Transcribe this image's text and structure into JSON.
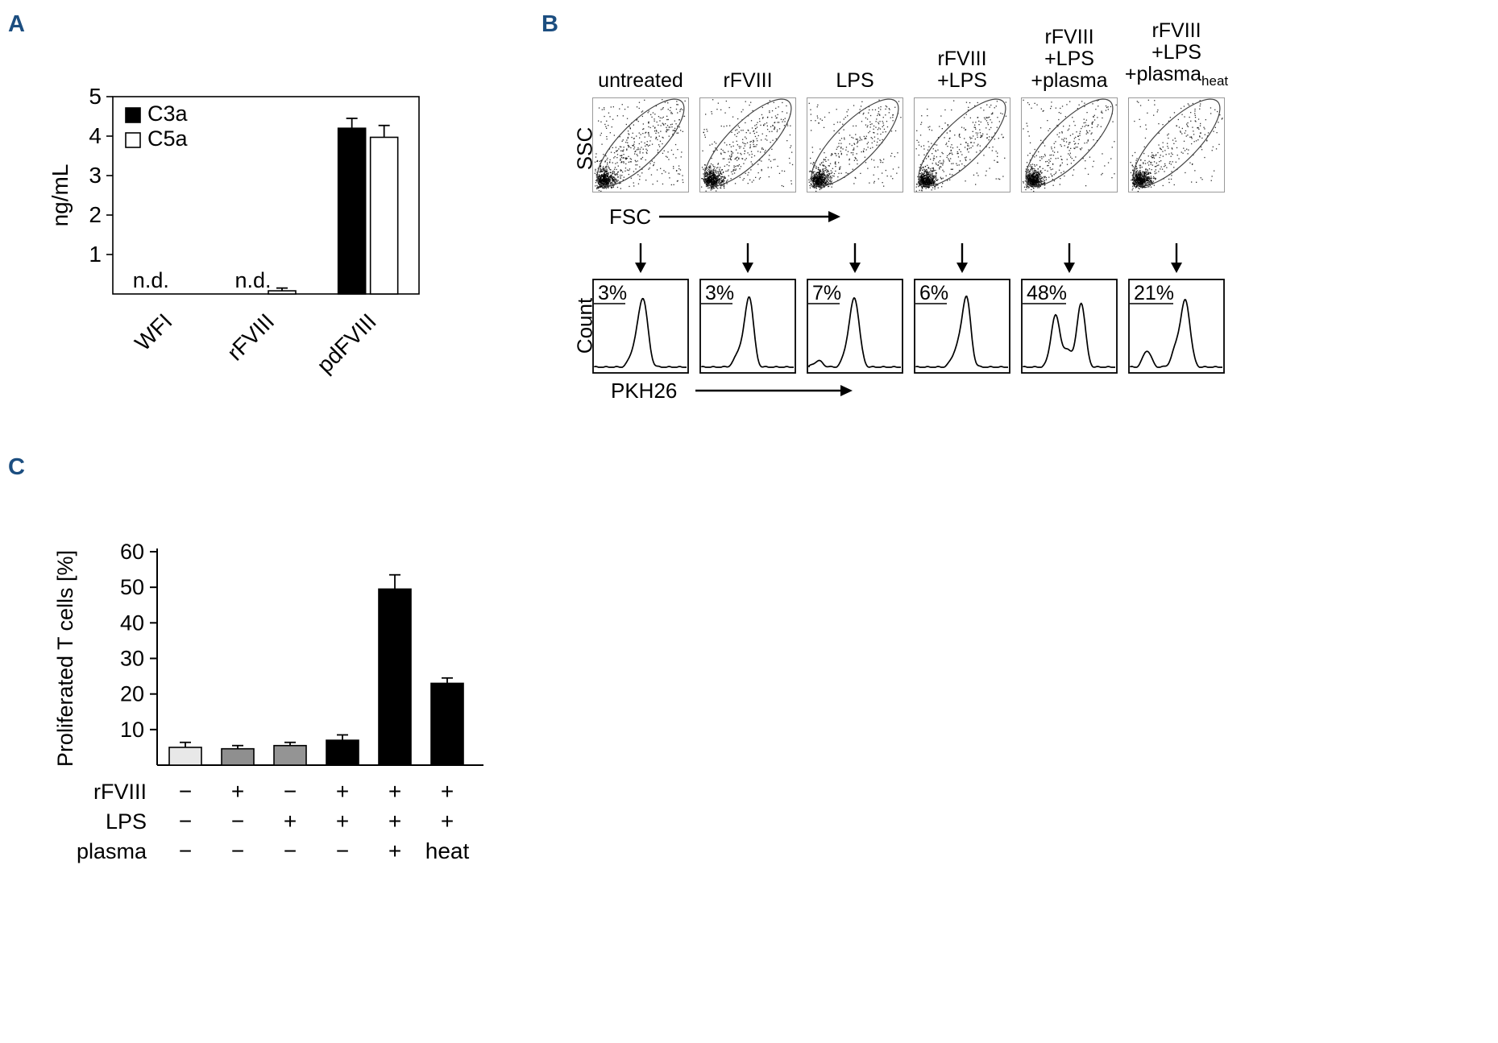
{
  "panels": {
    "a": "A",
    "b": "B",
    "c": "C"
  },
  "accent_color": "#1c4e80",
  "chart_data": [
    {
      "id": "complement",
      "type": "bar",
      "title": "",
      "xlabel": "",
      "ylabel": "ng/mL",
      "ylim": [
        0,
        5
      ],
      "yticks": [
        1,
        2,
        3,
        4,
        5
      ],
      "frame": true,
      "legend_position": "top-left",
      "categories": [
        "WFI",
        "rFVIII",
        "pdFVIII"
      ],
      "series": [
        {
          "name": "C3a",
          "fill": "#000000",
          "values": [
            null,
            null,
            4.2
          ],
          "errors": [
            null,
            null,
            0.25
          ]
        },
        {
          "name": "C5a",
          "fill": "#ffffff",
          "values": [
            null,
            0.08,
            3.97
          ],
          "errors": [
            null,
            0.07,
            0.3
          ]
        }
      ],
      "not_detected": {
        "text": "n.d.",
        "categories": [
          0,
          1
        ]
      }
    },
    {
      "id": "flow",
      "type": "flow-cytometry",
      "scatter_axes": {
        "x": "FSC",
        "y": "SSC"
      },
      "hist_axes": {
        "x": "PKH26",
        "y": "Count"
      },
      "columns": [
        {
          "label_lines": [
            "untreated"
          ],
          "percent": "3%",
          "hist_peaks": [
            {
              "c": 0.53,
              "s": 0.05,
              "a": 1.0
            },
            {
              "c": 0.44,
              "s": 0.055,
              "a": 0.28
            }
          ],
          "scatter": {
            "seed": 11,
            "diag": 300,
            "sparse": 200
          }
        },
        {
          "label_lines": [
            "rFVIII"
          ],
          "percent": "3%",
          "hist_peaks": [
            {
              "c": 0.52,
              "s": 0.045,
              "a": 1.0
            },
            {
              "c": 0.43,
              "s": 0.06,
              "a": 0.3
            }
          ],
          "scatter": {
            "seed": 23,
            "diag": 250,
            "sparse": 150
          }
        },
        {
          "label_lines": [
            "LPS"
          ],
          "percent": "7%",
          "hist_peaks": [
            {
              "c": 0.5,
              "s": 0.05,
              "a": 1.0
            },
            {
              "c": 0.1,
              "s": 0.05,
              "a": 0.1
            },
            {
              "c": 0.42,
              "s": 0.05,
              "a": 0.25
            }
          ],
          "scatter": {
            "seed": 37,
            "diag": 240,
            "sparse": 140
          }
        },
        {
          "label_lines": [
            "rFVIII",
            "+LPS"
          ],
          "percent": "6%",
          "hist_peaks": [
            {
              "c": 0.55,
              "s": 0.045,
              "a": 1.0
            },
            {
              "c": 0.46,
              "s": 0.06,
              "a": 0.32
            }
          ],
          "scatter": {
            "seed": 49,
            "diag": 230,
            "sparse": 130
          }
        },
        {
          "label_lines": [
            "rFVIII",
            "+LPS",
            "+plasma"
          ],
          "percent": "48%",
          "hist_peaks": [
            {
              "c": 0.35,
              "s": 0.05,
              "a": 0.8
            },
            {
              "c": 0.63,
              "s": 0.045,
              "a": 1.0
            },
            {
              "c": 0.49,
              "s": 0.05,
              "a": 0.25
            }
          ],
          "scatter": {
            "seed": 61,
            "diag": 210,
            "sparse": 110
          }
        },
        {
          "label_lines": [
            "rFVIII",
            "+LPS",
            "+plasma"
          ],
          "sub": "heat",
          "percent": "21%",
          "hist_peaks": [
            {
              "c": 0.18,
              "s": 0.045,
              "a": 0.26
            },
            {
              "c": 0.6,
              "s": 0.05,
              "a": 1.0
            },
            {
              "c": 0.5,
              "s": 0.05,
              "a": 0.3
            }
          ],
          "scatter": {
            "seed": 73,
            "diag": 200,
            "sparse": 110
          }
        }
      ]
    },
    {
      "id": "proliferation",
      "type": "bar",
      "title": "",
      "xlabel": "",
      "ylabel": "Proliferated T cells [%]",
      "ylim": [
        0,
        60
      ],
      "yticks": [
        10,
        20,
        30,
        40,
        50,
        60
      ],
      "values": [
        5,
        4.6,
        5.5,
        7,
        49.5,
        23
      ],
      "errors": [
        1.4,
        0.9,
        0.9,
        1.5,
        4,
        1.5
      ],
      "bar_colors": [
        "#e8e8e8",
        "#8f8f8f",
        "#949494",
        "#000000",
        "#000000",
        "#000000"
      ],
      "conditions": [
        {
          "label": "rFVIII",
          "values": [
            "−",
            "+",
            "−",
            "+",
            "+",
            "+"
          ]
        },
        {
          "label": "LPS",
          "values": [
            "−",
            "−",
            "+",
            "+",
            "+",
            "+"
          ]
        },
        {
          "label": "plasma",
          "values": [
            "−",
            "−",
            "−",
            "−",
            "+",
            "heat"
          ]
        }
      ]
    }
  ]
}
